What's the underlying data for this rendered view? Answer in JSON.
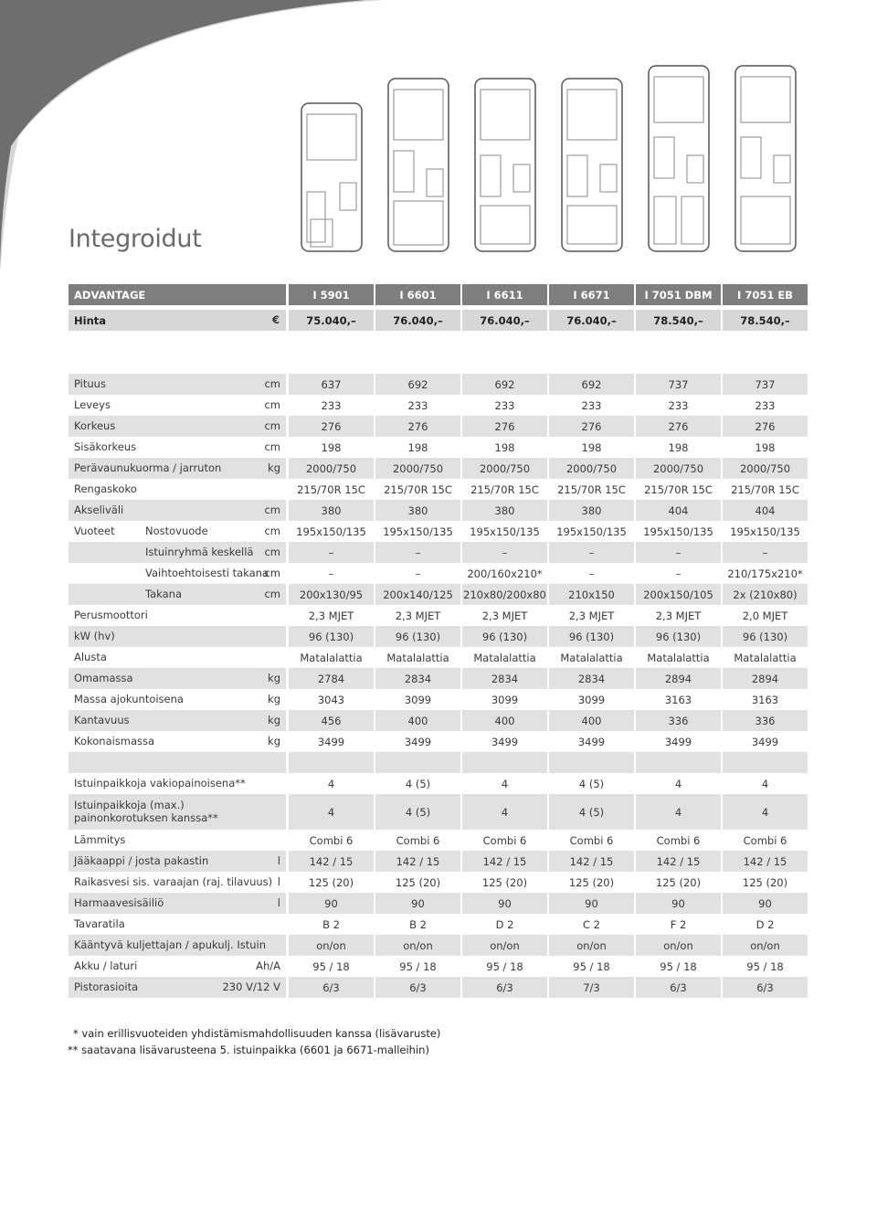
{
  "header": {
    "title": "Integroidut"
  },
  "table": {
    "header": {
      "label": "ADVANTAGE",
      "models": [
        "I 5901",
        "I 6601",
        "I 6611",
        "I 6671",
        "I 7051 DBM",
        "I 7051 EB"
      ]
    },
    "price": {
      "label": "Hinta",
      "unit": "€",
      "values": [
        "75.040,–",
        "76.040,–",
        "76.040,–",
        "76.040,–",
        "78.540,–",
        "78.540,–"
      ]
    },
    "rows": [
      {
        "label": "Pituus",
        "unit": "cm",
        "values": [
          "637",
          "692",
          "692",
          "692",
          "737",
          "737"
        ]
      },
      {
        "label": "Leveys",
        "unit": "cm",
        "values": [
          "233",
          "233",
          "233",
          "233",
          "233",
          "233"
        ]
      },
      {
        "label": "Korkeus",
        "unit": "cm",
        "values": [
          "276",
          "276",
          "276",
          "276",
          "276",
          "276"
        ]
      },
      {
        "label": "Sisäkorkeus",
        "unit": "cm",
        "values": [
          "198",
          "198",
          "198",
          "198",
          "198",
          "198"
        ]
      },
      {
        "label": "Perävaunukuorma / jarruton",
        "unit": "kg",
        "values": [
          "2000/750",
          "2000/750",
          "2000/750",
          "2000/750",
          "2000/750",
          "2000/750"
        ]
      },
      {
        "label": "Rengaskoko",
        "values": [
          "215/70R 15C",
          "215/70R 15C",
          "215/70R 15C",
          "215/70R 15C",
          "215/70R 15C",
          "215/70R 15C"
        ]
      },
      {
        "label": "Akseliväli",
        "unit": "cm",
        "values": [
          "380",
          "380",
          "380",
          "380",
          "404",
          "404"
        ]
      },
      {
        "label": "Vuoteet",
        "sublabel": "Nostovuode",
        "unit": "cm",
        "values": [
          "195x150/135",
          "195x150/135",
          "195x150/135",
          "195x150/135",
          "195x150/135",
          "195x150/135"
        ]
      },
      {
        "sublabel": "Istuinryhmä keskellä",
        "unit": "cm",
        "values": [
          "–",
          "–",
          "–",
          "–",
          "–",
          "–"
        ]
      },
      {
        "sublabel": "Vaihtoehtoisesti takana",
        "unit": "cm",
        "values": [
          "–",
          "–",
          "200/160x210*",
          "–",
          "–",
          "210/175x210*"
        ]
      },
      {
        "sublabel": "Takana",
        "unit": "cm",
        "values": [
          "200x130/95",
          "200x140/125",
          "210x80/200x80",
          "210x150",
          "200x150/105",
          "2x (210x80)"
        ]
      },
      {
        "label": "Perusmoottori",
        "values": [
          "2,3 MJET",
          "2,3 MJET",
          "2,3 MJET",
          "2,3 MJET",
          "2,3 MJET",
          "2,0 MJET"
        ]
      },
      {
        "label": "kW (hv)",
        "values": [
          "96 (130)",
          "96 (130)",
          "96 (130)",
          "96 (130)",
          "96 (130)",
          "96 (130)"
        ]
      },
      {
        "label": "Alusta",
        "values": [
          "Matalalattia",
          "Matalalattia",
          "Matalalattia",
          "Matalalattia",
          "Matalalattia",
          "Matalalattia"
        ]
      },
      {
        "label": "Omamassa",
        "unit": "kg",
        "values": [
          "2784",
          "2834",
          "2834",
          "2834",
          "2894",
          "2894"
        ]
      },
      {
        "label": "Massa ajokuntoisena",
        "unit": "kg",
        "values": [
          "3043",
          "3099",
          "3099",
          "3099",
          "3163",
          "3163"
        ]
      },
      {
        "label": "Kantavuus",
        "unit": "kg",
        "values": [
          "456",
          "400",
          "400",
          "400",
          "336",
          "336"
        ]
      },
      {
        "label": "Kokonaismassa",
        "unit": "kg",
        "values": [
          "3499",
          "3499",
          "3499",
          "3499",
          "3499",
          "3499"
        ]
      },
      {
        "label": "Istuinpaikkoja vakiopainoisena**",
        "values": [
          "4",
          "4 (5)",
          "4",
          "4 (5)",
          "4",
          "4"
        ]
      },
      {
        "label": "Istuinpaikkoja (max.) painonkorotuksen kanssa**",
        "values": [
          "4",
          "4 (5)",
          "4",
          "4 (5)",
          "4",
          "4"
        ]
      },
      {
        "label": "Lämmitys",
        "values": [
          "Combi 6",
          "Combi 6",
          "Combi 6",
          "Combi 6",
          "Combi 6",
          "Combi 6"
        ]
      },
      {
        "label": "Jääkaappi / josta pakastin",
        "unit": "l",
        "values": [
          "142 / 15",
          "142 / 15",
          "142 / 15",
          "142 / 15",
          "142 / 15",
          "142 / 15"
        ]
      },
      {
        "label": "Raikasvesi sis. varaajan (raj. tilavuus)",
        "unit": "l",
        "values": [
          "125 (20)",
          "125 (20)",
          "125 (20)",
          "125 (20)",
          "125 (20)",
          "125 (20)"
        ]
      },
      {
        "label": "Harmaavesisäiliö",
        "unit": "l",
        "values": [
          "90",
          "90",
          "90",
          "90",
          "90",
          "90"
        ]
      },
      {
        "label": "Tavaratila",
        "values": [
          "B 2",
          "B 2",
          "D 2",
          "C 2",
          "F 2",
          "D 2"
        ]
      },
      {
        "label": "Kääntyvä kuljettajan / apukulj. Istuin",
        "values": [
          "on/on",
          "on/on",
          "on/on",
          "on/on",
          "on/on",
          "on/on"
        ]
      },
      {
        "label": "Akku / laturi",
        "unit": "Ah/A",
        "values": [
          "95 / 18",
          "95 / 18",
          "95 / 18",
          "95 / 18",
          "95 / 18",
          "95 / 18"
        ]
      },
      {
        "label": "Pistorasioita",
        "unit": "230 V/12 V",
        "values": [
          "6/3",
          "6/3",
          "6/3",
          "7/3",
          "6/3",
          "6/3"
        ]
      }
    ]
  },
  "footnotes": [
    "* vain erillisvuoteiden yhdistämismahdollisuuden kanssa (lisävaruste)",
    "** saatavana lisävarusteena 5. istuinpaikka (6601 ja 6671-malleihin)"
  ]
}
